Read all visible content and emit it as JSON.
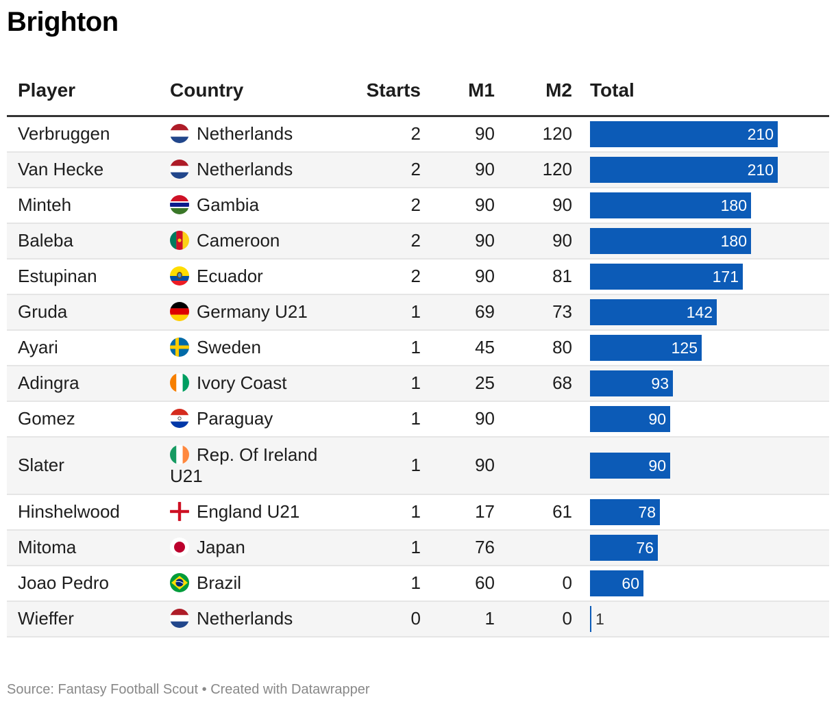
{
  "title": "Brighton",
  "columns": {
    "player": "Player",
    "country": "Country",
    "starts": "Starts",
    "m1": "M1",
    "m2": "M2",
    "total": "Total"
  },
  "colors": {
    "bar": "#0c5bb7",
    "bar_label": "#ffffff"
  },
  "chart_data": {
    "type": "table",
    "title": "Brighton",
    "bar_column": "Total",
    "bar_max": 210,
    "rows": [
      {
        "player": "Verbruggen",
        "country": "Netherlands",
        "flag": "netherlands-flag-icon",
        "starts": "2",
        "m1": "90",
        "m2": "120",
        "total": 210
      },
      {
        "player": "Van Hecke",
        "country": "Netherlands",
        "flag": "netherlands-flag-icon",
        "starts": "2",
        "m1": "90",
        "m2": "120",
        "total": 210
      },
      {
        "player": "Minteh",
        "country": "Gambia",
        "flag": "gambia-flag-icon",
        "starts": "2",
        "m1": "90",
        "m2": "90",
        "total": 180
      },
      {
        "player": "Baleba",
        "country": "Cameroon",
        "flag": "cameroon-flag-icon",
        "starts": "2",
        "m1": "90",
        "m2": "90",
        "total": 180
      },
      {
        "player": "Estupinan",
        "country": "Ecuador",
        "flag": "ecuador-flag-icon",
        "starts": "2",
        "m1": "90",
        "m2": "81",
        "total": 171
      },
      {
        "player": "Gruda",
        "country": "Germany U21",
        "flag": "germany-flag-icon",
        "starts": "1",
        "m1": "69",
        "m2": "73",
        "total": 142
      },
      {
        "player": "Ayari",
        "country": "Sweden",
        "flag": "sweden-flag-icon",
        "starts": "1",
        "m1": "45",
        "m2": "80",
        "total": 125
      },
      {
        "player": "Adingra",
        "country": "Ivory Coast",
        "flag": "ivory-coast-flag-icon",
        "starts": "1",
        "m1": "25",
        "m2": "68",
        "total": 93
      },
      {
        "player": "Gomez",
        "country": "Paraguay",
        "flag": "paraguay-flag-icon",
        "starts": "1",
        "m1": "90",
        "m2": "",
        "total": 90
      },
      {
        "player": "Slater",
        "country": "Rep. Of Ireland U21",
        "flag": "ireland-flag-icon",
        "starts": "1",
        "m1": "90",
        "m2": "",
        "total": 90
      },
      {
        "player": "Hinshelwood",
        "country": "England U21",
        "flag": "england-flag-icon",
        "starts": "1",
        "m1": "17",
        "m2": "61",
        "total": 78
      },
      {
        "player": "Mitoma",
        "country": "Japan",
        "flag": "japan-flag-icon",
        "starts": "1",
        "m1": "76",
        "m2": "",
        "total": 76
      },
      {
        "player": "Joao Pedro",
        "country": "Brazil",
        "flag": "brazil-flag-icon",
        "starts": "1",
        "m1": "60",
        "m2": "0",
        "total": 60
      },
      {
        "player": "Wieffer",
        "country": "Netherlands",
        "flag": "netherlands-flag-icon",
        "starts": "0",
        "m1": "1",
        "m2": "0",
        "total": 1
      }
    ]
  },
  "footer": {
    "source": "Source: Fantasy Football Scout",
    "separator": "•",
    "credit": "Created with Datawrapper"
  }
}
